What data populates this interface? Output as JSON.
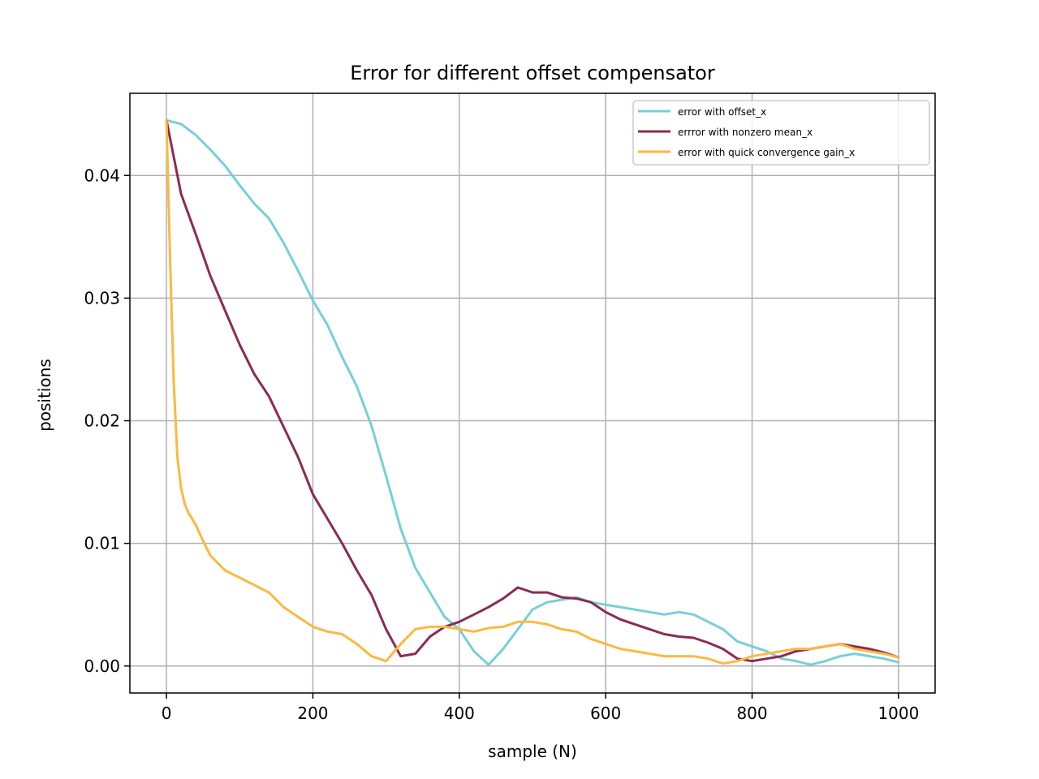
{
  "chart_data": {
    "type": "line",
    "title": "Error for different offset compensator",
    "xlabel": "sample (N)",
    "ylabel": "positions",
    "xlim": [
      -50,
      1050
    ],
    "ylim": [
      -0.0022,
      0.0467
    ],
    "xticks": [
      0,
      200,
      400,
      600,
      800,
      1000
    ],
    "xtick_labels": [
      "0",
      "200",
      "400",
      "600",
      "800",
      "1000"
    ],
    "yticks": [
      0.0,
      0.01,
      0.02,
      0.03,
      0.04
    ],
    "ytick_labels": [
      "0.00",
      "0.01",
      "0.02",
      "0.03",
      "0.04"
    ],
    "grid": true,
    "legend_position": "top-right",
    "series": [
      {
        "name": "error with offset_x",
        "color": "#76cfda",
        "x": [
          0,
          20,
          40,
          60,
          80,
          100,
          120,
          140,
          160,
          180,
          200,
          220,
          240,
          260,
          280,
          300,
          320,
          340,
          360,
          380,
          400,
          420,
          440,
          460,
          480,
          500,
          520,
          540,
          560,
          580,
          600,
          620,
          640,
          660,
          680,
          700,
          720,
          740,
          760,
          780,
          800,
          820,
          840,
          860,
          880,
          900,
          920,
          940,
          960,
          980,
          1000
        ],
        "y": [
          0.0445,
          0.0442,
          0.0433,
          0.0421,
          0.0408,
          0.0392,
          0.0377,
          0.0365,
          0.0345,
          0.0322,
          0.0298,
          0.0278,
          0.0252,
          0.0228,
          0.0196,
          0.0155,
          0.0112,
          0.008,
          0.006,
          0.004,
          0.003,
          0.0012,
          0.0001,
          0.0014,
          0.003,
          0.0046,
          0.0052,
          0.0054,
          0.0056,
          0.0052,
          0.005,
          0.0048,
          0.0046,
          0.0044,
          0.0042,
          0.0044,
          0.0042,
          0.0036,
          0.003,
          0.002,
          0.0016,
          0.0012,
          0.0006,
          0.0004,
          0.0001,
          0.0004,
          0.0008,
          0.001,
          0.0008,
          0.0006,
          0.0003
        ]
      },
      {
        "name": "errror with nonzero mean_x",
        "color": "#8b2b54",
        "x": [
          0,
          20,
          40,
          60,
          80,
          100,
          120,
          140,
          160,
          180,
          200,
          220,
          240,
          260,
          280,
          300,
          320,
          340,
          360,
          380,
          400,
          420,
          440,
          460,
          480,
          500,
          520,
          540,
          560,
          580,
          600,
          620,
          640,
          660,
          680,
          700,
          720,
          740,
          760,
          780,
          800,
          820,
          840,
          860,
          880,
          900,
          920,
          940,
          960,
          980,
          1000
        ],
        "y": [
          0.0445,
          0.0385,
          0.0352,
          0.0318,
          0.029,
          0.0262,
          0.0238,
          0.022,
          0.0195,
          0.017,
          0.014,
          0.012,
          0.01,
          0.0078,
          0.0058,
          0.003,
          0.0008,
          0.001,
          0.0024,
          0.0032,
          0.0036,
          0.0042,
          0.0048,
          0.0055,
          0.0064,
          0.006,
          0.006,
          0.0056,
          0.0055,
          0.0052,
          0.0044,
          0.0038,
          0.0034,
          0.003,
          0.0026,
          0.0024,
          0.0023,
          0.0019,
          0.0014,
          0.0006,
          0.0004,
          0.0006,
          0.0008,
          0.0012,
          0.0014,
          0.0016,
          0.0018,
          0.0016,
          0.0014,
          0.0011,
          0.0007
        ]
      },
      {
        "name": "error with quick convergence gain_x",
        "color": "#fbb940",
        "x": [
          0,
          5,
          10,
          15,
          20,
          25,
          30,
          40,
          50,
          60,
          70,
          80,
          100,
          120,
          140,
          160,
          180,
          200,
          220,
          240,
          260,
          280,
          300,
          320,
          340,
          360,
          380,
          400,
          420,
          440,
          460,
          480,
          500,
          520,
          540,
          560,
          580,
          600,
          620,
          640,
          660,
          680,
          700,
          720,
          740,
          760,
          780,
          800,
          820,
          840,
          860,
          880,
          900,
          920,
          940,
          960,
          980,
          1000
        ],
        "y": [
          0.0445,
          0.033,
          0.023,
          0.017,
          0.0145,
          0.0132,
          0.0125,
          0.0115,
          0.0102,
          0.009,
          0.0084,
          0.0078,
          0.0072,
          0.0066,
          0.006,
          0.0048,
          0.004,
          0.0032,
          0.0028,
          0.0026,
          0.0018,
          0.0008,
          0.0004,
          0.0018,
          0.003,
          0.0032,
          0.0032,
          0.003,
          0.0028,
          0.0031,
          0.0032,
          0.0036,
          0.0036,
          0.0034,
          0.003,
          0.0028,
          0.0022,
          0.0018,
          0.0014,
          0.0012,
          0.001,
          0.0008,
          0.0008,
          0.0008,
          0.0006,
          0.0002,
          0.0004,
          0.0008,
          0.001,
          0.0012,
          0.0014,
          0.0014,
          0.0016,
          0.0018,
          0.0014,
          0.0012,
          0.001,
          0.0007
        ]
      }
    ]
  }
}
